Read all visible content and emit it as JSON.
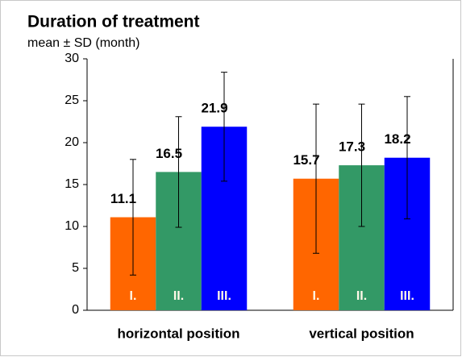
{
  "chart_data": {
    "type": "bar",
    "title": "Duration of treatment",
    "subtitle": "mean ± SD (month)",
    "categories": [
      "horizontal position",
      "vertical position"
    ],
    "series": [
      {
        "name": "I.",
        "color": "#ff6600",
        "values": [
          11.1,
          15.7
        ],
        "errors": [
          6.9,
          8.9
        ]
      },
      {
        "name": "II.",
        "color": "#339966",
        "values": [
          16.5,
          17.3
        ],
        "errors": [
          6.6,
          7.3
        ]
      },
      {
        "name": "III.",
        "color": "#0000ff",
        "values": [
          21.9,
          18.2
        ],
        "errors": [
          6.5,
          7.3
        ]
      }
    ],
    "ylim": [
      0,
      30
    ],
    "yticks": [
      0,
      5,
      10,
      15,
      20,
      25,
      30
    ],
    "grid": false
  }
}
